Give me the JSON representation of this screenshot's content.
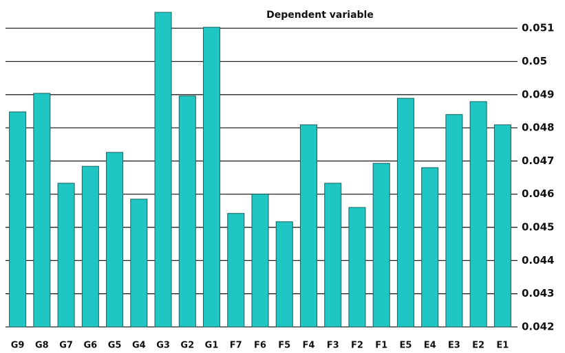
{
  "chart_data": {
    "type": "bar",
    "title": "Dependent variable",
    "categories": [
      "G9",
      "G8",
      "G7",
      "G6",
      "G5",
      "G4",
      "G3",
      "G2",
      "G1",
      "F7",
      "F6",
      "F5",
      "F4",
      "F3",
      "F2",
      "F1",
      "E5",
      "E4",
      "E3",
      "E2",
      "E1"
    ],
    "values": [
      0.04848,
      0.04904,
      0.04633,
      0.04684,
      0.04726,
      0.04585,
      0.05148,
      0.04896,
      0.05103,
      0.04542,
      0.046,
      0.04517,
      0.04809,
      0.04633,
      0.0456,
      0.04693,
      0.04889,
      0.0468,
      0.0484,
      0.04879,
      0.04809
    ],
    "color": "#1fc6c4",
    "ylim": [
      0.042,
      0.0515
    ],
    "yticks": [
      0.042,
      0.043,
      0.044,
      0.045,
      0.046,
      0.047,
      0.048,
      0.049,
      0.05,
      0.051
    ],
    "grid": true
  }
}
